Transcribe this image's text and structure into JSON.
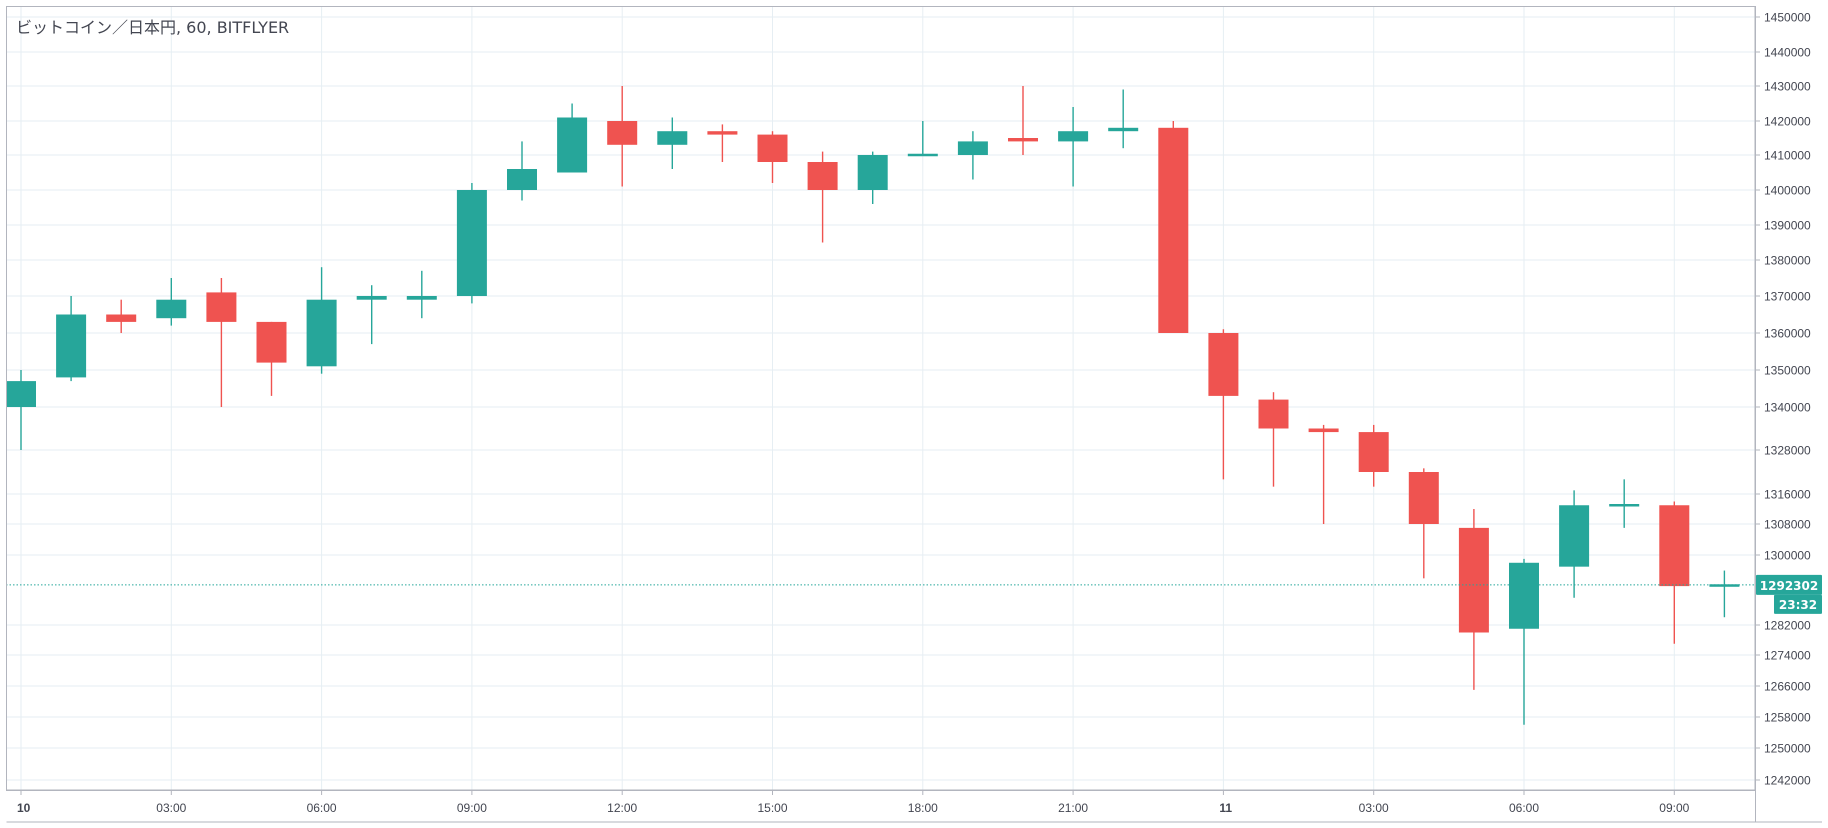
{
  "header": {
    "title": "ビットコイン／日本円, 60, BITFLYER"
  },
  "colors": {
    "up": "#26a69a",
    "down": "#ef5350",
    "grid": "#e6eef3",
    "axis": "#787b86",
    "text": "#434651",
    "last_price_bg": "#26a69a"
  },
  "last_price": {
    "value": 1292302,
    "label": "1292302",
    "countdown": "23:32"
  },
  "chart_data": {
    "type": "candlestick",
    "title": "ビットコイン／日本円, 60, BITFLYER",
    "interval_minutes": 60,
    "price_axis_labels": [
      {
        "value": 1450000,
        "label": "1450000"
      },
      {
        "value": 1440000,
        "label": "1440000"
      },
      {
        "value": 1430000,
        "label": "1430000"
      },
      {
        "value": 1420000,
        "label": "1420000"
      },
      {
        "value": 1410000,
        "label": "1410000"
      },
      {
        "value": 1400000,
        "label": "1400000"
      },
      {
        "value": 1390000,
        "label": "1390000"
      },
      {
        "value": 1380000,
        "label": "1380000"
      },
      {
        "value": 1370000,
        "label": "1370000"
      },
      {
        "value": 1360000,
        "label": "1360000"
      },
      {
        "value": 1350000,
        "label": "1350000"
      },
      {
        "value": 1340000,
        "label": "1340000"
      },
      {
        "value": 1328000,
        "label": "1328000"
      },
      {
        "value": 1316000,
        "label": "1316000"
      },
      {
        "value": 1308000,
        "label": "1308000"
      },
      {
        "value": 1300000,
        "label": "1300000"
      },
      {
        "value": 1282000,
        "label": "1282000"
      },
      {
        "value": 1274000,
        "label": "1274000"
      },
      {
        "value": 1266000,
        "label": "1266000"
      },
      {
        "value": 1258000,
        "label": "1258000"
      },
      {
        "value": 1250000,
        "label": "1250000"
      },
      {
        "value": 1242000,
        "label": "1242000"
      }
    ],
    "time_axis_labels": [
      {
        "index": 0,
        "label": "10",
        "bold": true
      },
      {
        "index": 3,
        "label": "03:00"
      },
      {
        "index": 6,
        "label": "06:00"
      },
      {
        "index": 9,
        "label": "09:00"
      },
      {
        "index": 12,
        "label": "12:00"
      },
      {
        "index": 15,
        "label": "15:00"
      },
      {
        "index": 18,
        "label": "18:00"
      },
      {
        "index": 21,
        "label": "21:00"
      },
      {
        "index": 24,
        "label": "11",
        "bold": true
      },
      {
        "index": 27,
        "label": "03:00"
      },
      {
        "index": 30,
        "label": "06:00"
      },
      {
        "index": 33,
        "label": "09:00"
      }
    ],
    "candles": [
      {
        "open": 1340000,
        "high": 1350000,
        "low": 1328000,
        "close": 1347000
      },
      {
        "open": 1348000,
        "high": 1370000,
        "low": 1347000,
        "close": 1365000
      },
      {
        "open": 1365000,
        "high": 1369000,
        "low": 1360000,
        "close": 1363000
      },
      {
        "open": 1364000,
        "high": 1375000,
        "low": 1362000,
        "close": 1369000
      },
      {
        "open": 1371000,
        "high": 1375000,
        "low": 1340000,
        "close": 1363000
      },
      {
        "open": 1363000,
        "high": 1363000,
        "low": 1343000,
        "close": 1352000
      },
      {
        "open": 1351000,
        "high": 1378000,
        "low": 1349000,
        "close": 1369000
      },
      {
        "open": 1369000,
        "high": 1373000,
        "low": 1357000,
        "close": 1370000
      },
      {
        "open": 1369000,
        "high": 1377000,
        "low": 1364000,
        "close": 1370000
      },
      {
        "open": 1370000,
        "high": 1402000,
        "low": 1368000,
        "close": 1400000
      },
      {
        "open": 1400000,
        "high": 1414000,
        "low": 1397000,
        "close": 1406000
      },
      {
        "open": 1405000,
        "high": 1425000,
        "low": 1405000,
        "close": 1421000
      },
      {
        "open": 1420000,
        "high": 1430000,
        "low": 1401000,
        "close": 1413000
      },
      {
        "open": 1413000,
        "high": 1421000,
        "low": 1406000,
        "close": 1417000
      },
      {
        "open": 1417000,
        "high": 1419000,
        "low": 1408000,
        "close": 1416000
      },
      {
        "open": 1416000,
        "high": 1417000,
        "low": 1402000,
        "close": 1408000
      },
      {
        "open": 1408000,
        "high": 1411000,
        "low": 1385000,
        "close": 1400000
      },
      {
        "open": 1400000,
        "high": 1411000,
        "low": 1396000,
        "close": 1410000
      },
      {
        "open": 1410000,
        "high": 1420000,
        "low": 1410000,
        "close": 1410000
      },
      {
        "open": 1410000,
        "high": 1417000,
        "low": 1403000,
        "close": 1414000
      },
      {
        "open": 1415000,
        "high": 1430000,
        "low": 1410000,
        "close": 1414000
      },
      {
        "open": 1414000,
        "high": 1424000,
        "low": 1401000,
        "close": 1417000
      },
      {
        "open": 1417000,
        "high": 1429000,
        "low": 1412000,
        "close": 1418000
      },
      {
        "open": 1418000,
        "high": 1420000,
        "low": 1360000,
        "close": 1360000
      },
      {
        "open": 1360000,
        "high": 1361000,
        "low": 1320000,
        "close": 1343000
      },
      {
        "open": 1342000,
        "high": 1344000,
        "low": 1318000,
        "close": 1334000
      },
      {
        "open": 1334000,
        "high": 1335000,
        "low": 1308000,
        "close": 1333000
      },
      {
        "open": 1333000,
        "high": 1335000,
        "low": 1318000,
        "close": 1322000
      },
      {
        "open": 1322000,
        "high": 1323000,
        "low": 1294000,
        "close": 1308000
      },
      {
        "open": 1307000,
        "high": 1312000,
        "low": 1265000,
        "close": 1280000
      },
      {
        "open": 1281000,
        "high": 1299000,
        "low": 1256000,
        "close": 1298000
      },
      {
        "open": 1297000,
        "high": 1317000,
        "low": 1289000,
        "close": 1313000
      },
      {
        "open": 1313000,
        "high": 1320000,
        "low": 1307000,
        "close": 1313000
      },
      {
        "open": 1313000,
        "high": 1314000,
        "low": 1277000,
        "close": 1292000
      },
      {
        "open": 1292000,
        "high": 1296000,
        "low": 1284000,
        "close": 1292302
      }
    ]
  }
}
